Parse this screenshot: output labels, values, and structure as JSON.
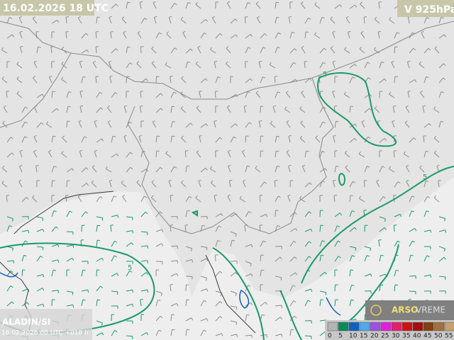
{
  "header": {
    "valid_time": "16.02.2026 18 UTC",
    "level": "V 925hPa"
  },
  "footer": {
    "model": "ALADIN/SI",
    "run": "16.02.2026 00 UTC +018 h",
    "brand": "ARSO",
    "brand_sub": "VREME"
  },
  "contour_label": "5",
  "legend": [
    {
      "label": "0",
      "color": "#b4b4b4"
    },
    {
      "label": "5",
      "color": "#0a8a5a"
    },
    {
      "label": "10",
      "color": "#1060c0"
    },
    {
      "label": "15",
      "color": "#50a8e8"
    },
    {
      "label": "20",
      "color": "#a050e0"
    },
    {
      "label": "25",
      "color": "#e020e0"
    },
    {
      "label": "30",
      "color": "#e0206a"
    },
    {
      "label": "35",
      "color": "#d01010"
    },
    {
      "label": "40",
      "color": "#a01010"
    },
    {
      "label": "45",
      "color": "#804010"
    },
    {
      "label": "50",
      "color": "#a07040"
    },
    {
      "label": "55",
      "color": "#c8a070"
    }
  ]
}
